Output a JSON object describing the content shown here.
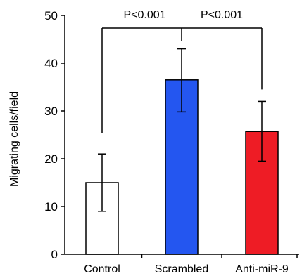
{
  "chart_data": {
    "type": "bar",
    "title": "",
    "xlabel": "",
    "ylabel": "Migrating cells/field",
    "ylim": [
      0,
      50
    ],
    "yticks": [
      0,
      10,
      20,
      30,
      40,
      50
    ],
    "categories": [
      "Control",
      "Scrambled",
      "Anti-miR-9"
    ],
    "values": [
      15,
      36.5,
      25.7
    ],
    "error_low": [
      9,
      29.8,
      19.5
    ],
    "error_high": [
      21,
      43,
      32
    ],
    "bar_colors": [
      "#ffffff",
      "#2456f0",
      "#ee1c25"
    ],
    "grid": false,
    "legend": "none",
    "annotations": [
      {
        "text": "P<0.001",
        "between": [
          "Control",
          "Scrambled"
        ]
      },
      {
        "text": "P<0.001",
        "between": [
          "Scrambled",
          "Anti-miR-9"
        ]
      }
    ]
  }
}
